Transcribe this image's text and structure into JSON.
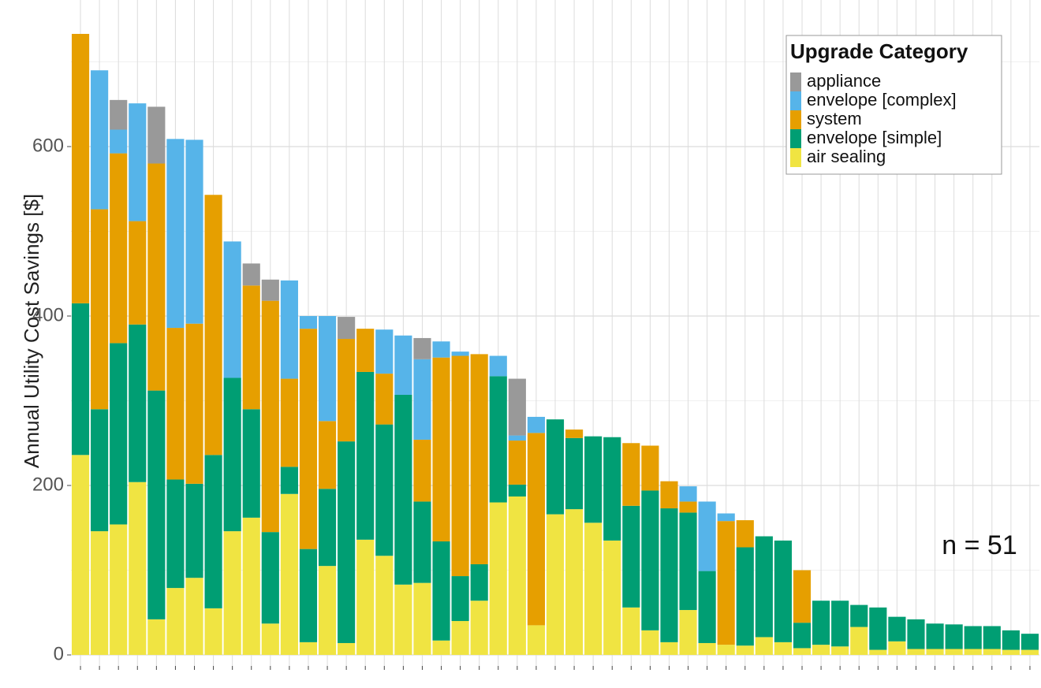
{
  "chart_data": {
    "type": "stacked_bar",
    "y_axis_label": "Annual Utility Cost Savings [$]",
    "annotation": "n = 51",
    "legend_title": "Upgrade Category",
    "legend_position": "top-right",
    "grid": true,
    "ylim": [
      -13,
      773
    ],
    "yticks": [
      0,
      200,
      400,
      600
    ],
    "yticks_minor": [
      100,
      300,
      500,
      700
    ],
    "categories": [
      null,
      null,
      null,
      null,
      null,
      null,
      null,
      null,
      null,
      null,
      null,
      null,
      null,
      null,
      null,
      null,
      null,
      null,
      null,
      null,
      null,
      null,
      null,
      null,
      null,
      null,
      null,
      null,
      null,
      null,
      null,
      null,
      null,
      null,
      null,
      null,
      null,
      null,
      null,
      null,
      null,
      null,
      null,
      null,
      null,
      null,
      null,
      null,
      null,
      null,
      null
    ],
    "series": [
      {
        "name": "air sealing",
        "color": "#f0e442",
        "values": [
          236,
          146,
          154,
          204,
          42,
          79,
          91,
          55,
          146,
          162,
          37,
          190,
          15,
          105,
          14,
          136,
          117,
          83,
          85,
          17,
          40,
          64,
          180,
          187,
          35,
          166,
          172,
          156,
          135,
          56,
          29,
          15,
          53,
          14,
          12,
          11,
          21,
          15,
          8,
          12,
          10,
          33,
          6,
          16,
          7,
          7,
          7,
          7,
          7,
          6,
          6
        ]
      },
      {
        "name": "envelope [simple]",
        "color": "#009e73",
        "values": [
          179,
          144,
          214,
          186,
          270,
          128,
          111,
          181,
          181,
          128,
          108,
          32,
          110,
          91,
          238,
          198,
          155,
          224,
          96,
          117,
          53,
          43,
          149,
          14,
          0,
          112,
          84,
          102,
          122,
          120,
          165,
          158,
          115,
          85,
          0,
          116,
          119,
          120,
          30,
          52,
          54,
          26,
          50,
          29,
          35,
          30,
          29,
          27,
          27,
          23,
          19
        ]
      },
      {
        "name": "system",
        "color": "#e69f00",
        "values": [
          318,
          236,
          224,
          122,
          268,
          179,
          189,
          307,
          0,
          146,
          273,
          104,
          260,
          80,
          121,
          51,
          60,
          0,
          73,
          217,
          260,
          248,
          0,
          52,
          227,
          0,
          10,
          0,
          0,
          74,
          53,
          32,
          13,
          0,
          146,
          32,
          0,
          0,
          62,
          0,
          0,
          0,
          0,
          0,
          0,
          0,
          0,
          0,
          0,
          0,
          0
        ]
      },
      {
        "name": "envelope [complex]",
        "color": "#56b4e9",
        "values": [
          0,
          164,
          28,
          139,
          0,
          223,
          217,
          0,
          161,
          0,
          0,
          116,
          15,
          124,
          0,
          0,
          52,
          70,
          95,
          19,
          5,
          0,
          24,
          6,
          19,
          0,
          0,
          0,
          0,
          0,
          0,
          0,
          18,
          82,
          9,
          0,
          0,
          0,
          0,
          0,
          0,
          0,
          0,
          0,
          0,
          0,
          0,
          0,
          0,
          0,
          0
        ]
      },
      {
        "name": "appliance",
        "color": "#999999",
        "values": [
          0,
          0,
          35,
          0,
          67,
          0,
          0,
          0,
          0,
          26,
          25,
          0,
          0,
          0,
          26,
          0,
          0,
          0,
          25,
          0,
          0,
          0,
          0,
          67,
          0,
          0,
          0,
          0,
          0,
          0,
          0,
          0,
          0,
          0,
          0,
          0,
          0,
          0,
          0,
          0,
          0,
          0,
          0,
          0,
          0,
          0,
          0,
          0,
          0,
          0,
          0
        ]
      }
    ]
  }
}
